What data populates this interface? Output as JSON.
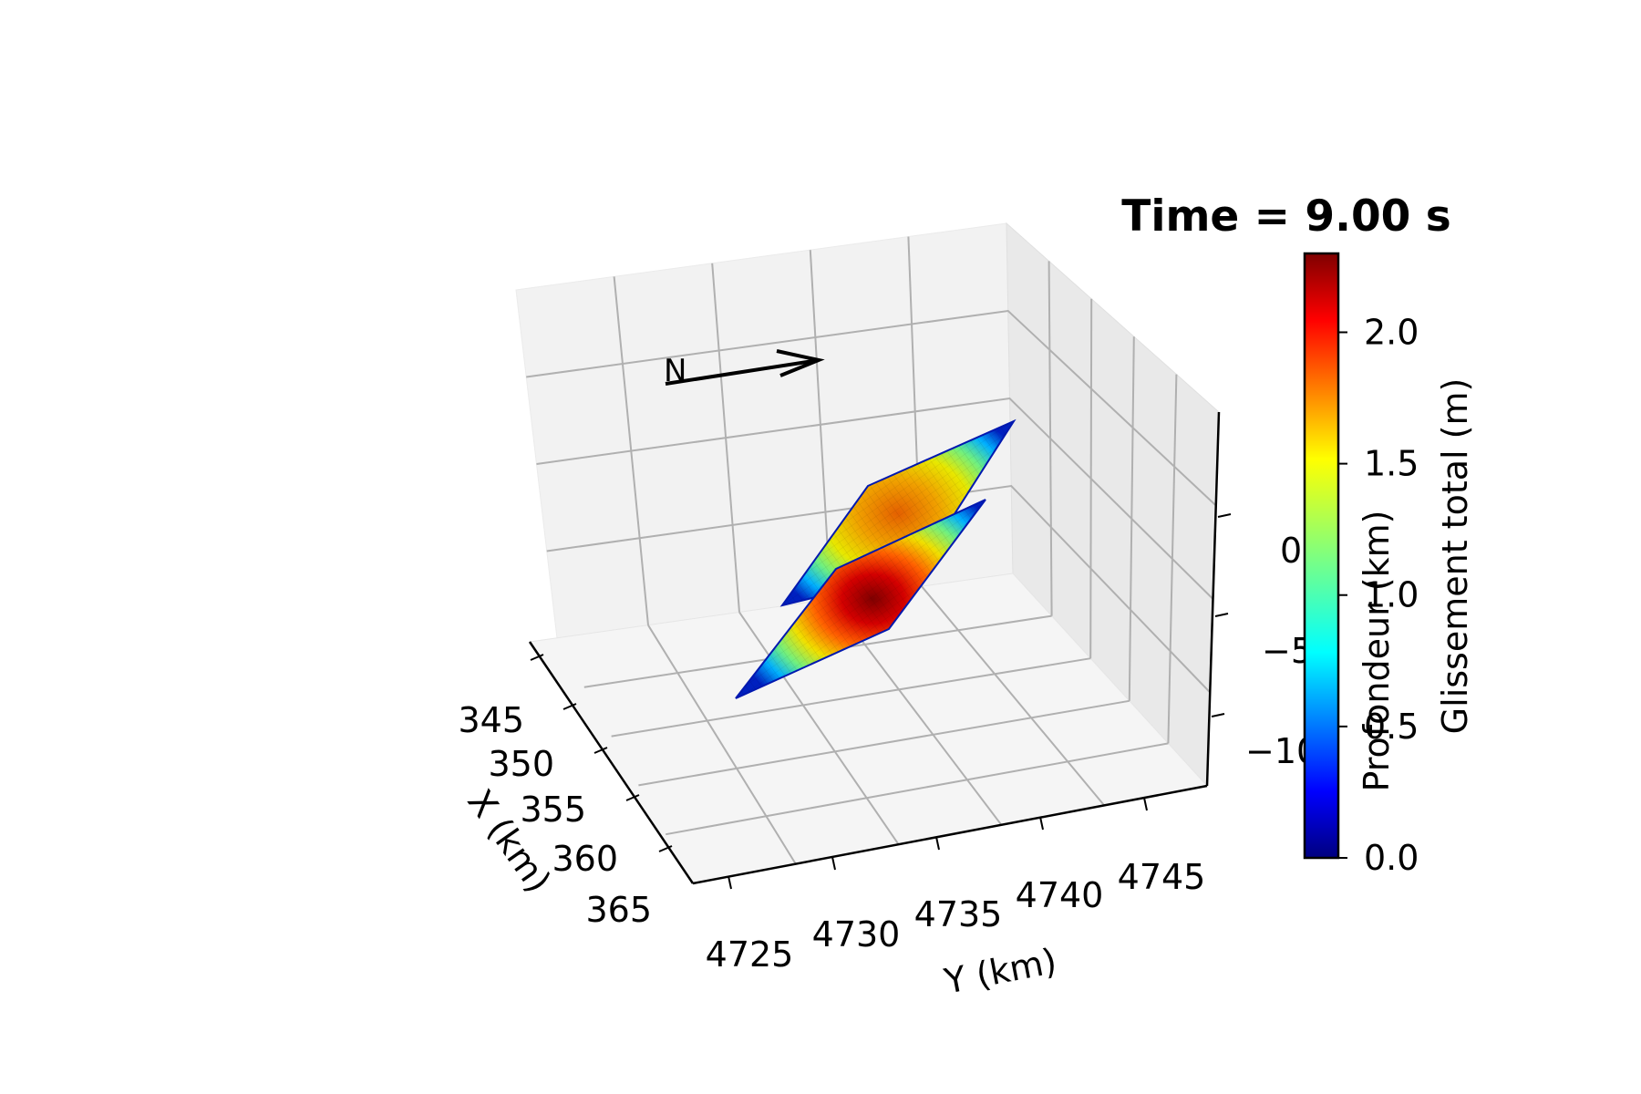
{
  "chart_data": {
    "type": "surface3d",
    "title": "Time = 9.00 s",
    "xlabel": "X (km)",
    "ylabel": "Y (km)",
    "zlabel": "Profondeur (km)",
    "x_ticks": [
      "345",
      "350",
      "355",
      "360",
      "365"
    ],
    "y_ticks": [
      "4725",
      "4730",
      "4735",
      "4740",
      "4745"
    ],
    "z_ticks": [
      "0",
      "−5",
      "−10"
    ],
    "north_label": "N",
    "colorbar": {
      "label": "Glissement total (m)",
      "ticks": [
        "0.0",
        "0.5",
        "1.0",
        "1.5",
        "2.0"
      ],
      "range": [
        0,
        2.3
      ],
      "colormap": "jet",
      "colors": [
        "#00007f",
        "#0000ff",
        "#007fff",
        "#00ffff",
        "#7fff7f",
        "#ffff00",
        "#ff7f00",
        "#ff0000",
        "#7f0000"
      ]
    },
    "surfaces": [
      {
        "name": "",
        "peak_slip_m": 1.7,
        "min_slip_m": 0.0
      },
      {
        "name": "",
        "peak_slip_m": 2.3,
        "min_slip_m": 0.0
      }
    ],
    "grid": true
  }
}
